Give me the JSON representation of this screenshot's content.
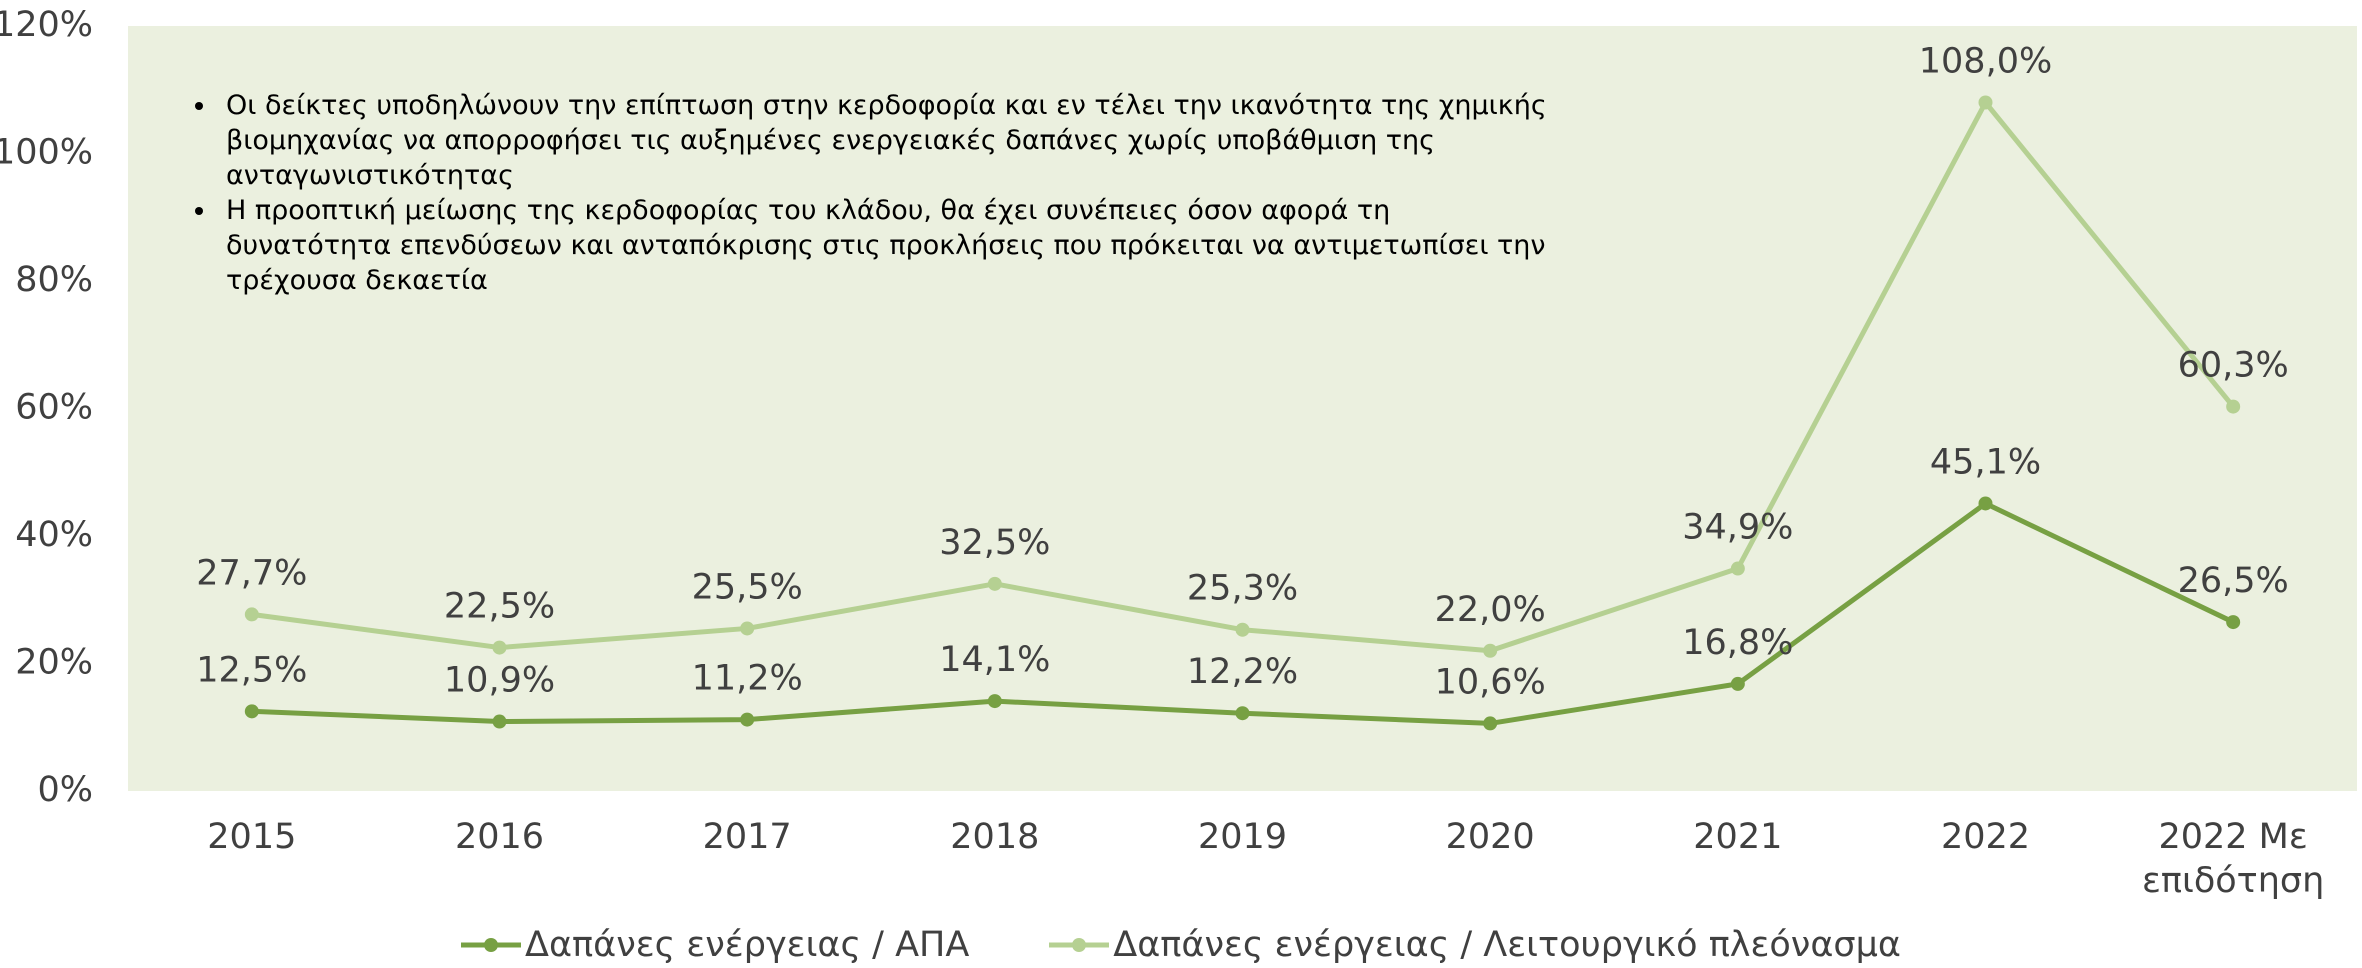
{
  "chart_data": {
    "type": "line",
    "categories": [
      "2015",
      "2016",
      "2017",
      "2018",
      "2019",
      "2020",
      "2021",
      "2022",
      "2022 Με επιδότηση"
    ],
    "series": [
      {
        "name": "Δαπάνες ενέργειας / ΑΠΑ",
        "color": "#77a043",
        "values": [
          12.5,
          10.9,
          11.2,
          14.1,
          12.2,
          10.6,
          16.8,
          45.1,
          26.5
        ],
        "value_labels": [
          "12,5%",
          "10,9%",
          "11,2%",
          "14,1%",
          "12,2%",
          "10,6%",
          "16,8%",
          "45,1%",
          "26,5%"
        ]
      },
      {
        "name": "Δαπάνες ενέργειας / Λειτουργικό πλεόνασμα",
        "color": "#b5d092",
        "values": [
          27.7,
          22.5,
          25.5,
          32.5,
          25.3,
          22.0,
          34.9,
          108.0,
          60.3
        ],
        "value_labels": [
          "27,7%",
          "22,5%",
          "25,5%",
          "32,5%",
          "25,3%",
          "22,0%",
          "34,9%",
          "108,0%",
          "60,3%"
        ]
      }
    ],
    "ylim": [
      0,
      120
    ],
    "yticks": [
      {
        "value": 0,
        "label": "0%"
      },
      {
        "value": 20,
        "label": "20%"
      },
      {
        "value": 40,
        "label": "40%"
      },
      {
        "value": 60,
        "label": "60%"
      },
      {
        "value": 80,
        "label": "80%"
      },
      {
        "value": 100,
        "label": "100%"
      },
      {
        "value": 120,
        "label": "120%"
      }
    ],
    "annotations": [
      "Οι δείκτες υποδηλώνουν την επίπτωση στην κερδοφορία και εν τέλει την ικανότητα της χημικής βιομηχανίας να απορροφήσει τις αυξημένες ενεργειακές δαπάνες χωρίς υποβάθμιση της ανταγωνιστικότητας",
      "Η προοπτική μείωσης της κερδοφορίας του κλάδου, θα έχει συνέπειες όσον αφορά τη δυνατότητα επενδύσεων και ανταπόκρισης στις προκλήσεις που πρόκειται να αντιμετωπίσει την τρέχουσα δεκαετία"
    ],
    "plot_background": "#ebf0df"
  }
}
